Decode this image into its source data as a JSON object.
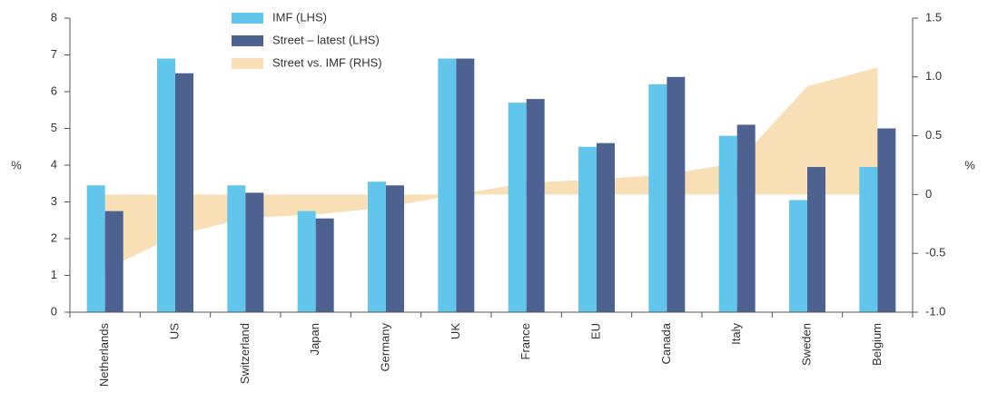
{
  "chart_data": {
    "type": "bar",
    "categories": [
      "Netherlands",
      "US",
      "Switzerland",
      "Japan",
      "Germany",
      "UK",
      "France",
      "EU",
      "Canada",
      "Italy",
      "Sweden",
      "Belgium"
    ],
    "series": [
      {
        "name": "IMF (LHS)",
        "color": "#62c6ec",
        "values": [
          3.45,
          6.9,
          3.45,
          2.75,
          3.55,
          6.9,
          5.7,
          4.5,
          6.2,
          4.8,
          3.05,
          3.95
        ]
      },
      {
        "name": "Street – latest (LHS)",
        "color": "#4d6290",
        "values": [
          2.75,
          6.5,
          3.25,
          2.55,
          3.45,
          6.9,
          5.8,
          4.6,
          6.4,
          5.1,
          3.95,
          5.0
        ]
      },
      {
        "name": "Street vs. IMF (RHS)",
        "color": "#f8dfb6",
        "type": "area",
        "axis": "y2",
        "values": [
          -0.64,
          -0.35,
          -0.2,
          -0.17,
          -0.11,
          0,
          0.1,
          0.13,
          0.17,
          0.27,
          0.92,
          1.08
        ]
      }
    ],
    "ylabel": "%",
    "y2label": "%",
    "ylim": [
      0,
      8
    ],
    "yticks": [
      0,
      1,
      2,
      3,
      4,
      5,
      6,
      7,
      8
    ],
    "y2lim": [
      -1,
      1.5
    ],
    "y2ticks": [
      {
        "value": -1,
        "label": "-1.0"
      },
      -0.5,
      0,
      0.5,
      {
        "value": 1,
        "label": "1.0"
      },
      1.5
    ]
  }
}
